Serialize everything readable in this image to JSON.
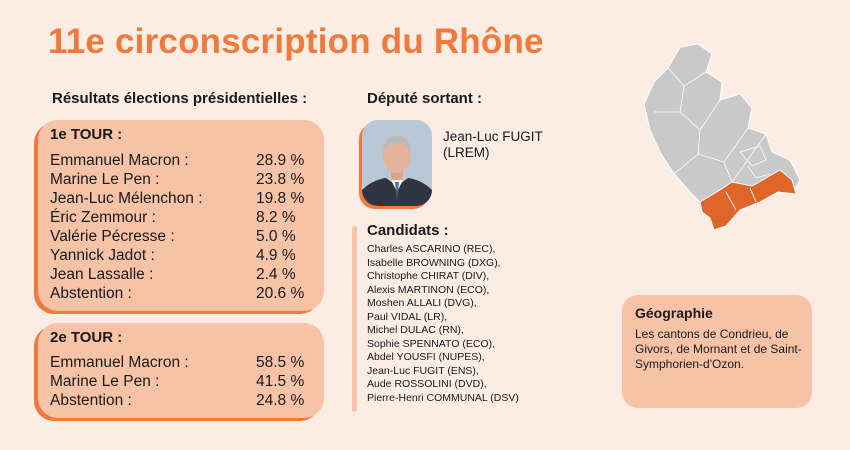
{
  "title": "11e circonscription du Rhône",
  "results_heading": "Résultats élections présidentielles :",
  "deputy_heading": "Député sortant :",
  "tour1": {
    "title": "1e TOUR :",
    "rows": [
      {
        "name": "Emmanuel Macron :",
        "value": "28.9 %"
      },
      {
        "name": "Marine Le Pen :",
        "value": "23.8 %"
      },
      {
        "name": "Jean-Luc Mélenchon :",
        "value": "19.8 %"
      },
      {
        "name": "Éric Zemmour :",
        "value": "8.2 %"
      },
      {
        "name": "Valérie Pécresse :",
        "value": "5.0 %"
      },
      {
        "name": "Yannick Jadot :",
        "value": "4.9 %"
      },
      {
        "name": "Jean Lassalle :",
        "value": "2.4 %"
      },
      {
        "name": "Abstention :",
        "value": "20.6 %"
      }
    ]
  },
  "tour2": {
    "title": "2e TOUR :",
    "rows": [
      {
        "name": "Emmanuel Macron :",
        "value": "58.5 %"
      },
      {
        "name": "Marine Le Pen :",
        "value": "41.5 %"
      },
      {
        "name": "Abstention :",
        "value": "24.8 %"
      }
    ]
  },
  "deputy": {
    "name_line1": "Jean-Luc FUGIT",
    "name_line2": "(LREM)"
  },
  "candidates_heading": "Candidats :",
  "candidates": [
    "Charles ASCARINO (REC),",
    "Isabelle BROWNING (DXG),",
    "Christophe CHIRAT (DIV),",
    "Alexis MARTINON (ECO),",
    "Moshen ALLALI (DVG),",
    "Paul VIDAL (LR),",
    "Michel DULAC (RN),",
    "Sophie SPENNATO (ECO),",
    "Abdel YOUSFI (NUPES),",
    "Jean-Luc FUGIT (ENS),",
    "Aude ROSSOLINI (DVD),",
    "Pierre-Henri COMMUNAL (DSV)"
  ],
  "geography": {
    "title": "Géographie",
    "text": "Les cantons de Condrieu, de Givors, de Mornant et de Saint-Symphorien-d'Ozon."
  },
  "colors": {
    "accent": "#ee7a3e",
    "box": "#f6c3a6",
    "background": "#fbece4",
    "map_grey": "#c9c9c9",
    "map_highlight": "#e0652a"
  }
}
